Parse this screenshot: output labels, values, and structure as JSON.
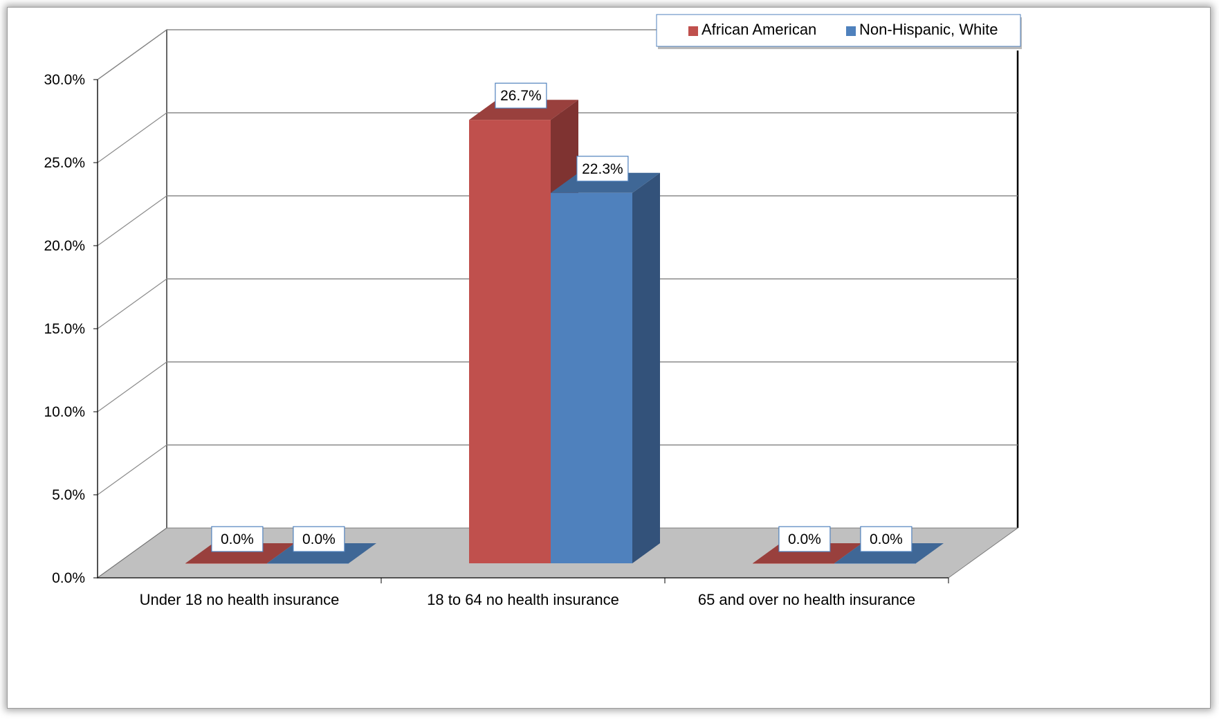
{
  "chart_data": {
    "type": "bar",
    "style": "3d-clustered-column",
    "categories": [
      "Under 18  no health insurance",
      "18 to 64 no health insurance",
      "65 and over no health insurance"
    ],
    "series": [
      {
        "name": "African American",
        "values": [
          0.0,
          26.7,
          0.0
        ],
        "color": "#c0504d",
        "side_color": "#7f3331",
        "top_color": "#99403d"
      },
      {
        "name": "Non-Hispanic, White",
        "values": [
          0.0,
          22.3,
          0.0
        ],
        "color": "#4f81bd",
        "side_color": "#33527a",
        "top_color": "#3f6796"
      }
    ],
    "data_labels": [
      "0.0%",
      "26.7%",
      "0.0%",
      "0.0%",
      "22.3%",
      "0.0%"
    ],
    "y_ticks": [
      "0.0%",
      "5.0%",
      "10.0%",
      "15.0%",
      "20.0%",
      "25.0%",
      "30.0%"
    ],
    "ylim": [
      0,
      30
    ],
    "y_unit": "%",
    "legend_position": "top-right",
    "grid": true,
    "floor_color": "#c0c0c0"
  }
}
